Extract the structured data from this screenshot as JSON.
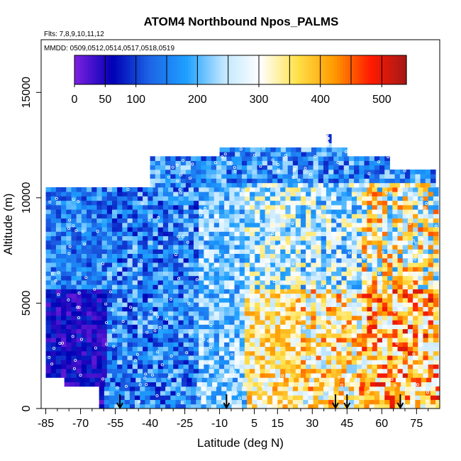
{
  "chart_data": {
    "type": "heatmap",
    "title": "ATOM4 Northbound Npos_PALMS",
    "subtitle_flights": "Flts: 7,8,9,10,11,12",
    "subtitle_dates": "MMDD: 0509,0512,0514,0517,0518,0519",
    "xlabel": "Latitude (deg N)",
    "ylabel": "Altitude (m)",
    "xlim": [
      -87,
      85
    ],
    "ylim": [
      0,
      17500
    ],
    "x_ticks": [
      -85,
      -70,
      -55,
      -40,
      -25,
      -10,
      5,
      15,
      30,
      45,
      60,
      75
    ],
    "x_tick_labels": [
      "-85",
      "-70",
      "-55",
      "-40",
      "-25",
      "-10",
      "5",
      "15",
      "30",
      "45",
      "60",
      "75"
    ],
    "x_minor_ticks": [
      -80,
      -75,
      -65,
      -60,
      -50,
      -45,
      -35,
      -30,
      -20,
      -15,
      -5,
      0,
      10,
      20,
      25,
      35,
      40,
      50,
      55,
      65,
      70,
      80
    ],
    "y_ticks": [
      0,
      5000,
      10000,
      15000
    ],
    "y_tick_labels": [
      "0",
      "5000",
      "10000",
      "15000"
    ],
    "colorbar": {
      "ticks": [
        0,
        50,
        100,
        200,
        300,
        400,
        500
      ],
      "tick_labels": [
        "0",
        "50",
        "100",
        "200",
        "300",
        "400",
        "500"
      ],
      "range": [
        0,
        540
      ],
      "divisions": [
        50,
        100,
        150,
        200,
        250,
        300,
        350,
        400,
        450,
        500
      ],
      "colors": [
        "#7a1fe0",
        "#0000b4",
        "#1c64e6",
        "#1ea0ff",
        "#bfe6ff",
        "#ffffff",
        "#ffe14a",
        "#ff9a00",
        "#ff1a00",
        "#a01818"
      ]
    },
    "flight_arrows_lat": [
      -53,
      -7,
      40,
      45,
      68
    ],
    "altitude_band_ranges_m": [
      [
        0,
        10500
      ],
      [
        10500,
        11300
      ],
      [
        11300,
        11900
      ],
      [
        11900,
        12200
      ],
      [
        12200,
        13000
      ]
    ],
    "band_lat_extent": [
      {
        "alt_min": 0,
        "alt_max": 900,
        "lat_min": -62,
        "lat_max": 84
      },
      {
        "alt_min": 900,
        "alt_max": 1400,
        "lat_min": -77,
        "lat_max": 82
      },
      {
        "alt_min": 1400,
        "alt_max": 10500,
        "lat_min": -85,
        "lat_max": 84
      },
      {
        "alt_min": 10500,
        "alt_max": 11300,
        "lat_min": -40,
        "lat_max": 82
      },
      {
        "alt_min": 11300,
        "alt_max": 11900,
        "lat_min": -40,
        "lat_max": 63
      },
      {
        "alt_min": 11900,
        "alt_max": 12200,
        "lat_min": -10,
        "lat_max": 45
      },
      {
        "alt_min": 12200,
        "alt_max": 13000,
        "lat_min": 36,
        "lat_max": 37
      }
    ]
  }
}
